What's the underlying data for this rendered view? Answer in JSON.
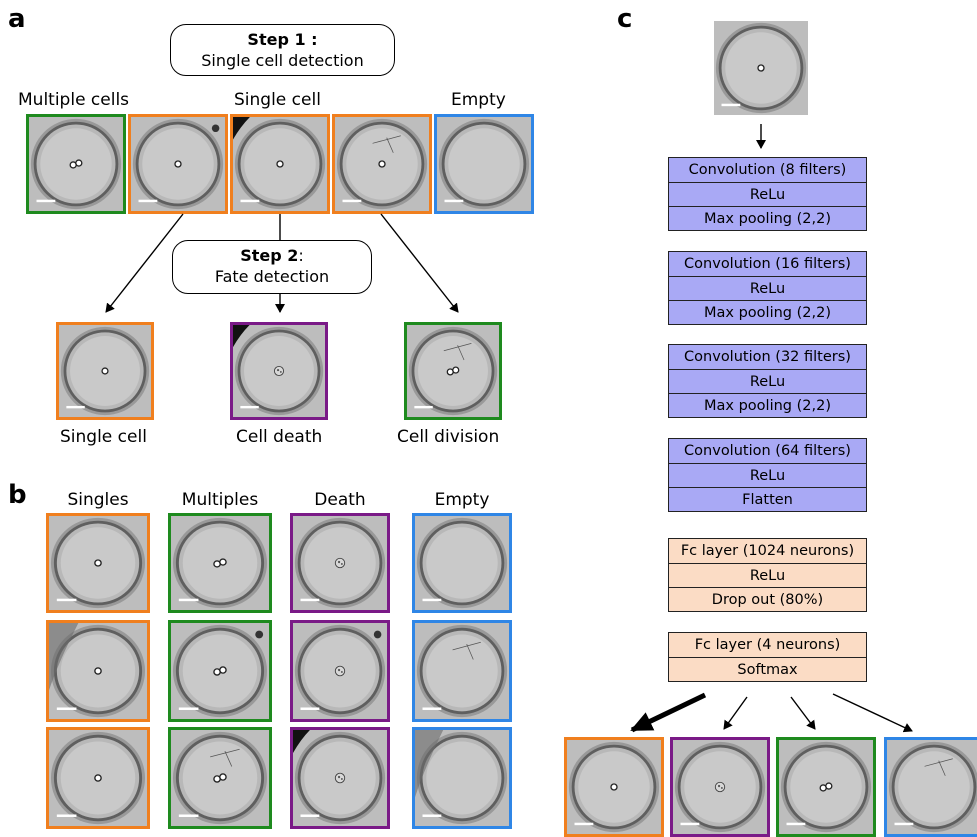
{
  "panel_a": {
    "letter": "a",
    "step1": {
      "bold": "Step 1 :",
      "text": "Single cell detection"
    },
    "step2": {
      "bold": "Step 2",
      "colon": ":",
      "text": "Fate detection"
    },
    "group_labels": {
      "multiple": "Multiple cells",
      "single": "Single cell",
      "empty": "Empty"
    },
    "outcome_labels": {
      "single": "Single cell",
      "death": "Cell death",
      "division": "Cell division"
    }
  },
  "panel_b": {
    "letter": "b",
    "columns": [
      "Singles",
      "Multiples",
      "Death",
      "Empty"
    ]
  },
  "panel_c": {
    "letter": "c",
    "conv_blocks": [
      {
        "conv": "Convolution (8 filters)",
        "act": "ReLu",
        "pool": "Max pooling (2,2)"
      },
      {
        "conv": "Convolution (16 filters)",
        "act": "ReLu",
        "pool": "Max pooling (2,2)"
      },
      {
        "conv": "Convolution (32 filters)",
        "act": "ReLu",
        "pool": "Max pooling (2,2)"
      },
      {
        "conv": "Convolution (64 filters)",
        "act": "ReLu",
        "pool": "Flatten"
      }
    ],
    "fc_blocks": [
      {
        "fc": "Fc layer (1024 neurons)",
        "act": "ReLu",
        "drop": "Drop out (80%)"
      },
      {
        "fc": "Fc layer (4 neurons)",
        "act": "Softmax"
      }
    ]
  },
  "colors": {
    "single": "#f07f1e",
    "multiple": "#1e8a1e",
    "death": "#7a1a87",
    "empty": "#2f86e6",
    "conv_fill": "#a9a9f5",
    "fc_fill": "#fbdcc5"
  }
}
